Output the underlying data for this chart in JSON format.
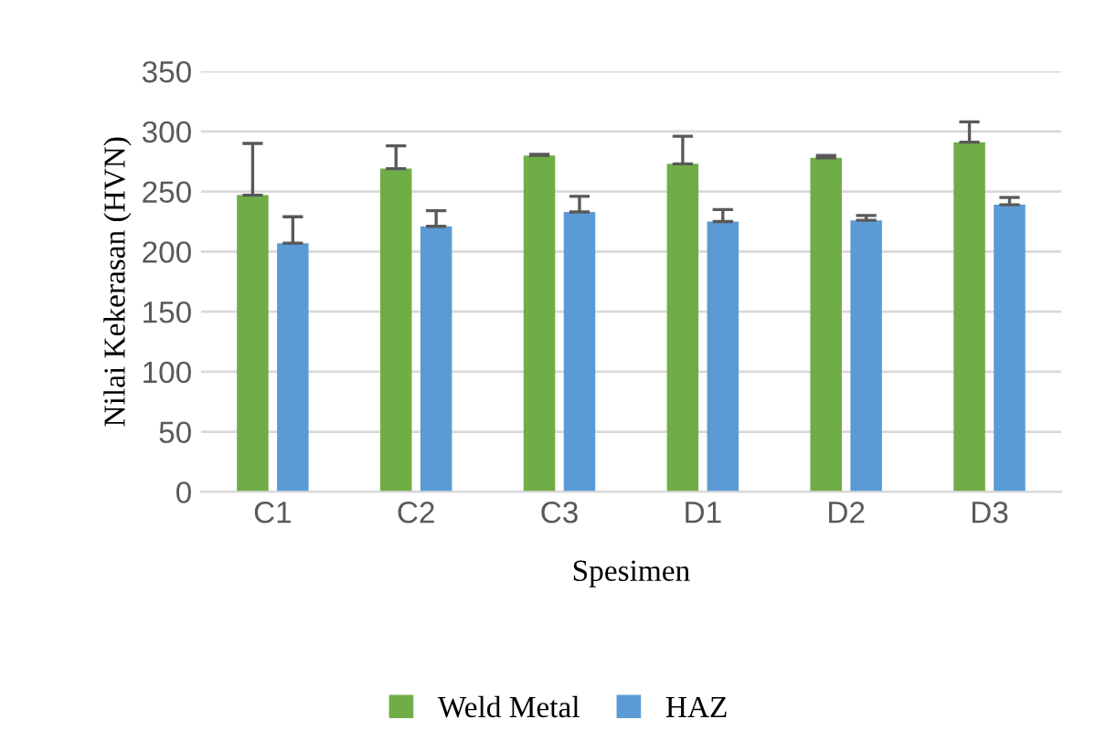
{
  "chart_data": {
    "type": "bar",
    "xlabel": "Spesimen",
    "ylabel": "Nilai Kekerasan (HVN)",
    "categories": [
      "C1",
      "C2",
      "C3",
      "D1",
      "D2",
      "D3"
    ],
    "series": [
      {
        "name": "Weld Metal",
        "color": "#70ad47",
        "values": [
          247,
          269,
          280,
          273,
          278,
          291
        ],
        "errors": [
          [
            247,
            290
          ],
          [
            269,
            288
          ],
          [
            280,
            281
          ],
          [
            273,
            296
          ],
          [
            278,
            280
          ],
          [
            291,
            308
          ]
        ]
      },
      {
        "name": "HAZ",
        "color": "#5b9bd5",
        "values": [
          207,
          221,
          233,
          225,
          226,
          239
        ],
        "errors": [
          [
            207,
            229
          ],
          [
            221,
            234
          ],
          [
            233,
            246
          ],
          [
            225,
            235
          ],
          [
            226,
            230
          ],
          [
            239,
            245
          ]
        ]
      }
    ],
    "ylim": [
      0,
      350
    ],
    "yticks": [
      0,
      50,
      100,
      150,
      200,
      250,
      300,
      350
    ],
    "grid": "y",
    "legend": "bottom"
  }
}
